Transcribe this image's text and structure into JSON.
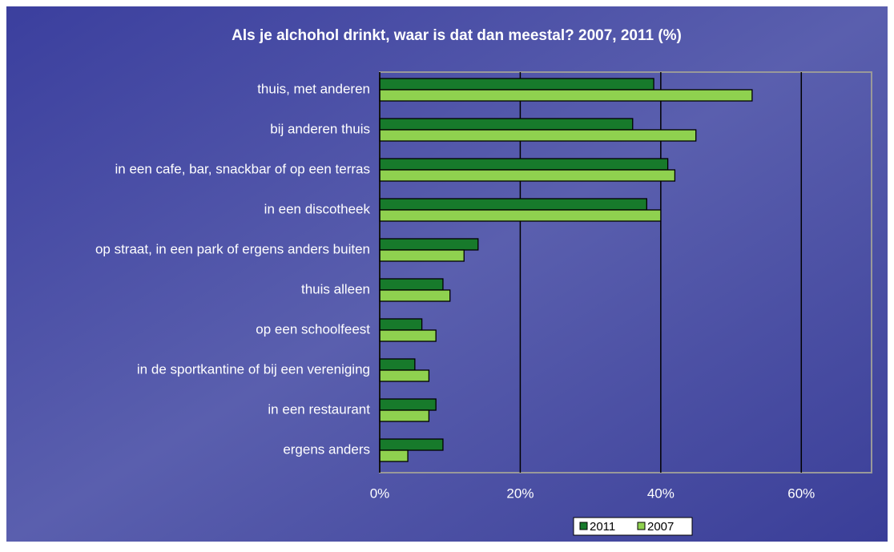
{
  "chart_data": {
    "type": "barh",
    "title": "Als je alchohol drinkt, waar is dat dan meestal? 2007, 2011 (%)",
    "categories": [
      "thuis, met anderen",
      "bij anderen thuis",
      "in een cafe, bar, snackbar of op een terras",
      "in een discotheek",
      "op straat, in een park of ergens anders buiten",
      "thuis alleen",
      "op een schoolfeest",
      "in de sportkantine of bij een vereniging",
      "in een restaurant",
      "ergens anders"
    ],
    "series": [
      {
        "name": "2011",
        "color": "#177a2b",
        "values": [
          39,
          36,
          41,
          38,
          14,
          9,
          6,
          5,
          8,
          9
        ]
      },
      {
        "name": "2007",
        "color": "#8fd14f",
        "values": [
          53,
          45,
          42,
          40,
          12,
          10,
          8,
          7,
          7,
          4
        ]
      }
    ],
    "xlim": [
      0,
      70
    ],
    "xticks": [
      {
        "value": 0,
        "label": "0%"
      },
      {
        "value": 20,
        "label": "20%"
      },
      {
        "value": 40,
        "label": "40%"
      },
      {
        "value": 60,
        "label": "60%"
      }
    ],
    "grid": true,
    "legend": "bottom"
  }
}
